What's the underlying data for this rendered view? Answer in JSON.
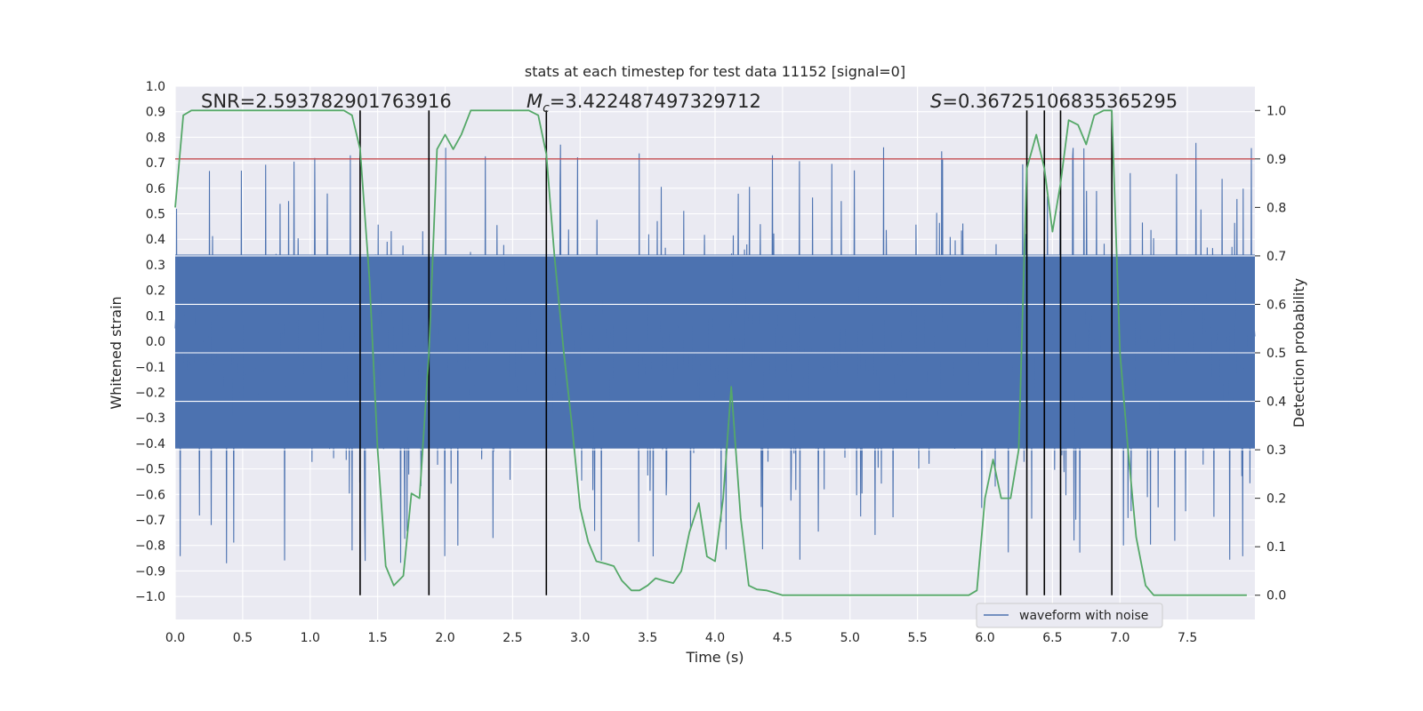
{
  "chart_data": {
    "type": "line",
    "title": "stats at each timestep for test data 11152 [signal=0]",
    "xlabel": "Time (s)",
    "ylabel_left": "Whitened strain",
    "ylabel_right": "Detection probability",
    "xlim": [
      0.0,
      8.0
    ],
    "ylim_left": [
      -1.09,
      1.0
    ],
    "ylim_right": [
      -0.05,
      1.05
    ],
    "x_ticks": [
      0.0,
      0.5,
      1.0,
      1.5,
      2.0,
      2.5,
      3.0,
      3.5,
      4.0,
      4.5,
      5.0,
      5.5,
      6.0,
      6.5,
      7.0,
      7.5
    ],
    "x_tick_labels": [
      "0.0",
      "0.5",
      "1.0",
      "1.5",
      "2.0",
      "2.5",
      "3.0",
      "3.5",
      "4.0",
      "4.5",
      "5.0",
      "5.5",
      "6.0",
      "6.5",
      "7.0",
      "7.5"
    ],
    "y_left_ticks": [
      1.0,
      0.9,
      0.8,
      0.7,
      0.6,
      0.5,
      0.4,
      0.3,
      0.2,
      0.1,
      0.0,
      -0.1,
      -0.2,
      -0.3,
      -0.4,
      -0.5,
      -0.6,
      -0.7,
      -0.8,
      -0.9,
      -1.0
    ],
    "y_left_tick_labels": [
      "1.0",
      "0.9",
      "0.8",
      "0.7",
      "0.6",
      "0.5",
      "0.4",
      "0.3",
      "0.2",
      "0.1",
      "0.0",
      "−0.1",
      "−0.2",
      "−0.3",
      "−0.4",
      "−0.5",
      "−0.6",
      "−0.7",
      "−0.8",
      "−0.9",
      "−1.0"
    ],
    "y_right_ticks": [
      1.0,
      0.9,
      0.8,
      0.7,
      0.6,
      0.5,
      0.4,
      0.3,
      0.2,
      0.1,
      0.0
    ],
    "y_right_tick_labels": [
      "1.0",
      "0.9",
      "0.8",
      "0.7",
      "0.6",
      "0.5",
      "0.4",
      "0.3",
      "0.2",
      "0.1",
      "0.0"
    ],
    "annotations": {
      "snr": "SNR=2.593782901763916",
      "mc_symbol": "M",
      "mc_subscript": "c",
      "mc_value": "=3.422487497329712",
      "s_symbol": "S",
      "s_value": "=0.36725106835365295"
    },
    "threshold_line": {
      "y": 0.9,
      "axis": "right",
      "color": "#c44e52"
    },
    "vertical_lines_x": [
      1.37,
      1.88,
      2.75,
      6.31,
      6.44,
      6.56,
      6.94
    ],
    "series": [
      {
        "name": "waveform with noise",
        "axis": "left",
        "color": "#4c72b0",
        "style": "dense noise, approx. band -0.42 to 0.34 with peaks to about ±0.9",
        "band_low": -0.42,
        "band_high": 0.34,
        "peak_max": 0.92,
        "peak_min": -0.99
      },
      {
        "name": "Detection probability",
        "axis": "right",
        "color": "#55a868",
        "x": [
          0.0,
          0.06,
          0.12,
          0.25,
          0.5,
          0.75,
          1.0,
          1.25,
          1.31,
          1.37,
          1.44,
          1.5,
          1.56,
          1.62,
          1.69,
          1.75,
          1.81,
          1.88,
          1.94,
          2.0,
          2.06,
          2.12,
          2.19,
          2.25,
          2.5,
          2.62,
          2.69,
          2.75,
          2.81,
          2.88,
          2.94,
          3.0,
          3.06,
          3.12,
          3.19,
          3.25,
          3.31,
          3.38,
          3.44,
          3.5,
          3.56,
          3.62,
          3.69,
          3.75,
          3.81,
          3.88,
          3.94,
          4.0,
          4.06,
          4.12,
          4.19,
          4.25,
          4.31,
          4.38,
          4.5,
          4.75,
          5.0,
          5.25,
          5.5,
          5.75,
          5.88,
          5.94,
          6.0,
          6.06,
          6.12,
          6.19,
          6.25,
          6.31,
          6.38,
          6.44,
          6.5,
          6.56,
          6.62,
          6.69,
          6.75,
          6.81,
          6.88,
          6.94,
          7.0,
          7.06,
          7.12,
          7.19,
          7.25,
          7.5,
          7.75,
          7.94
        ],
        "values": [
          0.8,
          0.99,
          1.0,
          1.0,
          1.0,
          1.0,
          1.0,
          1.0,
          0.99,
          0.92,
          0.65,
          0.3,
          0.06,
          0.02,
          0.04,
          0.21,
          0.2,
          0.5,
          0.92,
          0.95,
          0.92,
          0.95,
          1.0,
          1.0,
          1.0,
          1.0,
          0.99,
          0.91,
          0.7,
          0.5,
          0.35,
          0.18,
          0.11,
          0.07,
          0.065,
          0.06,
          0.03,
          0.01,
          0.01,
          0.02,
          0.035,
          0.03,
          0.025,
          0.05,
          0.13,
          0.19,
          0.08,
          0.07,
          0.2,
          0.43,
          0.16,
          0.02,
          0.012,
          0.01,
          0.0,
          0.0,
          0.0,
          0.0,
          0.0,
          0.0,
          0.0,
          0.01,
          0.2,
          0.28,
          0.2,
          0.2,
          0.3,
          0.88,
          0.95,
          0.88,
          0.75,
          0.85,
          0.98,
          0.97,
          0.93,
          0.99,
          1.0,
          1.0,
          0.5,
          0.3,
          0.12,
          0.02,
          0.0,
          0.0,
          0.0,
          0.0
        ]
      }
    ],
    "legend": {
      "location": "lower-right",
      "entries": [
        "waveform with noise"
      ]
    }
  }
}
